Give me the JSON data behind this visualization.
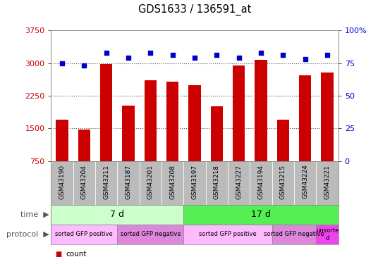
{
  "title": "GDS1633 / 136591_at",
  "samples": [
    "GSM43190",
    "GSM43204",
    "GSM43211",
    "GSM43187",
    "GSM43201",
    "GSM43208",
    "GSM43197",
    "GSM43218",
    "GSM43227",
    "GSM43194",
    "GSM43215",
    "GSM43224",
    "GSM43221"
  ],
  "counts": [
    1700,
    1480,
    2980,
    2030,
    2600,
    2580,
    2490,
    2000,
    2950,
    3080,
    1700,
    2720,
    2780
  ],
  "percentiles": [
    75,
    73,
    83,
    79,
    83,
    81,
    79,
    81,
    79,
    83,
    81,
    78,
    81
  ],
  "bar_color": "#cc0000",
  "dot_color": "#0000cc",
  "ylim_left": [
    750,
    3750
  ],
  "ylim_right": [
    0,
    100
  ],
  "yticks_left": [
    750,
    1500,
    2250,
    3000,
    3750
  ],
  "yticks_right": [
    0,
    25,
    50,
    75,
    100
  ],
  "time_groups": [
    {
      "label": "7 d",
      "start": 0,
      "end": 6,
      "color": "#ccffcc"
    },
    {
      "label": "17 d",
      "start": 6,
      "end": 13,
      "color": "#55ee55"
    }
  ],
  "protocol_groups": [
    {
      "label": "sorted GFP positive",
      "start": 0,
      "end": 3,
      "color": "#ffbbff"
    },
    {
      "label": "sorted GFP negative",
      "start": 3,
      "end": 6,
      "color": "#dd88dd"
    },
    {
      "label": "sorted GFP positive",
      "start": 6,
      "end": 10,
      "color": "#ffbbff"
    },
    {
      "label": "sorted GFP negative",
      "start": 10,
      "end": 12,
      "color": "#dd88dd"
    },
    {
      "label": "unsorte\nd",
      "start": 12,
      "end": 13,
      "color": "#ee44ee"
    }
  ],
  "grid_color": "#555555",
  "bg_color": "#ffffff",
  "tick_area_color": "#bbbbbb",
  "spine_color": "#888888"
}
